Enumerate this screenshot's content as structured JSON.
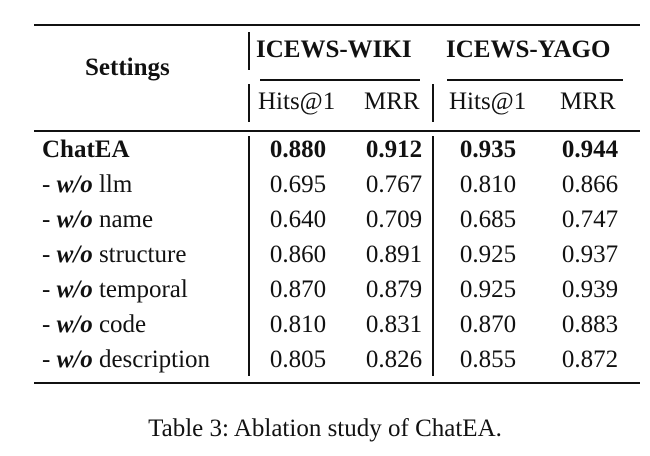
{
  "table": {
    "header": {
      "settings": "Settings",
      "groups": [
        "ICEWS-WIKI",
        "ICEWS-YAGO"
      ],
      "subcolumns": [
        "Hits@1",
        "MRR",
        "Hits@1",
        "MRR"
      ]
    },
    "rows": [
      {
        "prefix": "",
        "italic": "",
        "label": "ChatEA",
        "values": [
          "0.880",
          "0.912",
          "0.935",
          "0.944"
        ],
        "bold": true
      },
      {
        "prefix": "- ",
        "italic": "w/o",
        "label": " llm",
        "values": [
          "0.695",
          "0.767",
          "0.810",
          "0.866"
        ],
        "bold": false
      },
      {
        "prefix": "- ",
        "italic": "w/o",
        "label": " name",
        "values": [
          "0.640",
          "0.709",
          "0.685",
          "0.747"
        ],
        "bold": false
      },
      {
        "prefix": "- ",
        "italic": "w/o",
        "label": " structure",
        "values": [
          "0.860",
          "0.891",
          "0.925",
          "0.937"
        ],
        "bold": false
      },
      {
        "prefix": "- ",
        "italic": "w/o",
        "label": " temporal",
        "values": [
          "0.870",
          "0.879",
          "0.925",
          "0.939"
        ],
        "bold": false
      },
      {
        "prefix": "- ",
        "italic": "w/o",
        "label": " code",
        "values": [
          "0.810",
          "0.831",
          "0.870",
          "0.883"
        ],
        "bold": false
      },
      {
        "prefix": "- ",
        "italic": "w/o",
        "label": " description",
        "values": [
          "0.805",
          "0.826",
          "0.855",
          "0.872"
        ],
        "bold": false
      }
    ]
  },
  "caption": "Table 3: Ablation study of ChatEA."
}
